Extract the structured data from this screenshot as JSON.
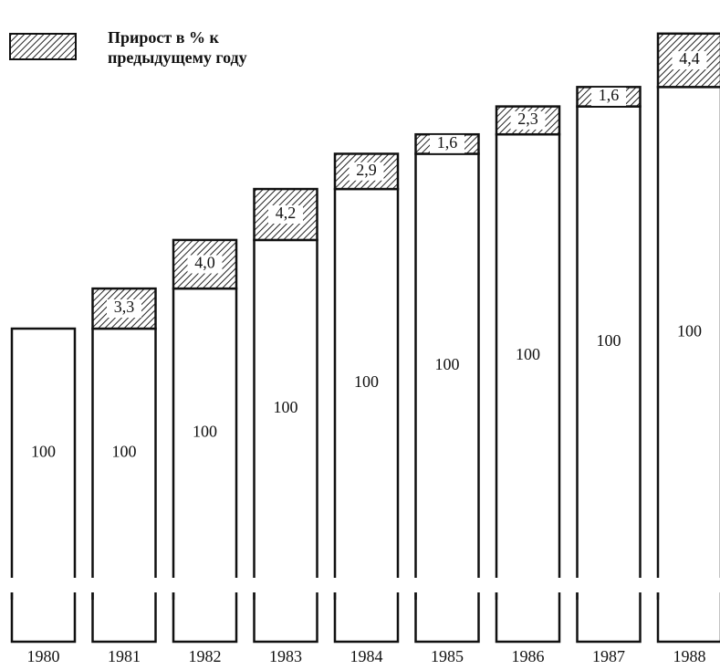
{
  "chart_data": {
    "type": "bar",
    "categories": [
      "1980",
      "1981",
      "1982",
      "1983",
      "1984",
      "1985",
      "1986",
      "1987",
      "1988"
    ],
    "series": [
      {
        "color": "#ffffff",
        "values": [
          100,
          100,
          100,
          100,
          100,
          100,
          100,
          100,
          100
        ]
      },
      {
        "name": "Прирост в % к предыдущему году",
        "color": "hatch",
        "values": [
          null,
          3.3,
          4.0,
          4.2,
          2.9,
          1.6,
          2.3,
          1.6,
          4.4
        ],
        "value_labels": [
          null,
          "3,3",
          "4,0",
          "4,2",
          "2,9",
          "1,6",
          "2,3",
          "1,6",
          "4,4"
        ]
      }
    ]
  }
}
